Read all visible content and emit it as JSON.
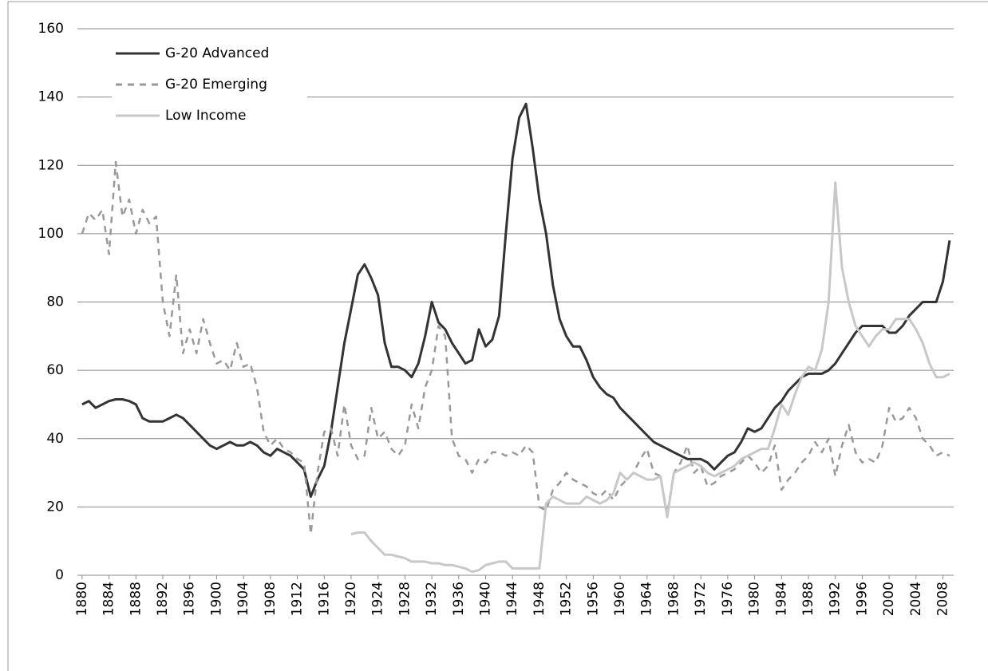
{
  "chart_data": {
    "type": "line",
    "x": [
      1880,
      1881,
      1882,
      1883,
      1884,
      1885,
      1886,
      1887,
      1888,
      1889,
      1890,
      1891,
      1892,
      1893,
      1894,
      1895,
      1896,
      1897,
      1898,
      1899,
      1900,
      1901,
      1902,
      1903,
      1904,
      1905,
      1906,
      1907,
      1908,
      1909,
      1910,
      1911,
      1912,
      1913,
      1914,
      1915,
      1916,
      1917,
      1918,
      1919,
      1920,
      1921,
      1922,
      1923,
      1924,
      1925,
      1926,
      1927,
      1928,
      1929,
      1930,
      1931,
      1932,
      1933,
      1934,
      1935,
      1936,
      1937,
      1938,
      1939,
      1940,
      1941,
      1942,
      1943,
      1944,
      1945,
      1946,
      1947,
      1948,
      1949,
      1950,
      1951,
      1952,
      1953,
      1954,
      1955,
      1956,
      1957,
      1958,
      1959,
      1960,
      1961,
      1962,
      1963,
      1964,
      1965,
      1966,
      1967,
      1968,
      1969,
      1970,
      1971,
      1972,
      1973,
      1974,
      1975,
      1976,
      1977,
      1978,
      1979,
      1980,
      1981,
      1982,
      1983,
      1984,
      1985,
      1986,
      1987,
      1988,
      1989,
      1990,
      1991,
      1992,
      1993,
      1994,
      1995,
      1996,
      1997,
      1998,
      1999,
      2000,
      2001,
      2002,
      2003,
      2004,
      2005,
      2006,
      2007,
      2008,
      2009
    ],
    "series": [
      {
        "name": "G-20 Advanced",
        "color": "#333333",
        "line_style": "solid",
        "values": [
          50,
          51,
          49,
          50,
          51,
          51.5,
          51.5,
          51,
          50,
          46,
          45,
          45,
          45,
          46,
          47,
          46,
          44,
          42,
          40,
          38,
          37,
          38,
          39,
          38,
          38,
          39,
          38,
          36,
          35,
          37,
          36,
          35,
          33,
          31,
          23,
          28,
          32,
          42,
          55,
          68,
          78,
          88,
          91,
          87,
          82,
          68,
          61,
          61,
          60,
          58,
          62,
          70,
          80,
          74,
          72,
          68,
          65,
          62,
          63,
          72,
          67,
          69,
          76,
          100,
          122,
          134,
          138,
          125,
          110,
          100,
          85,
          75,
          70,
          67,
          67,
          63,
          58,
          55,
          53,
          52,
          49,
          47,
          45,
          43,
          41,
          39,
          38,
          37,
          36,
          35,
          34,
          34,
          34,
          33,
          31,
          33,
          35,
          36,
          39,
          43,
          42,
          43,
          46,
          49,
          51,
          54,
          56,
          58,
          59,
          59,
          59,
          60,
          62,
          65,
          68,
          71,
          73,
          73,
          73,
          73,
          71,
          71,
          73,
          76,
          78,
          80,
          80,
          80,
          86,
          98
        ]
      },
      {
        "name": "G-20 Emerging",
        "color": "#999999",
        "line_style": "dashed",
        "values": [
          100,
          106,
          104,
          107,
          94,
          121,
          105,
          110,
          100,
          107,
          103,
          105,
          80,
          70,
          88,
          65,
          72,
          65,
          75,
          68,
          62,
          63,
          60,
          68,
          61,
          62,
          55,
          42,
          38,
          40,
          37,
          36,
          34,
          33,
          12,
          30,
          42,
          43,
          35,
          50,
          38,
          34,
          35,
          49,
          40,
          42,
          37,
          35,
          38,
          50,
          43,
          55,
          60,
          73,
          70,
          40,
          35,
          34,
          30,
          34,
          33,
          36,
          36,
          35,
          36,
          35,
          38,
          36,
          20,
          19,
          25,
          27,
          30,
          28,
          27,
          26,
          24,
          23,
          25,
          22,
          26,
          28,
          30,
          34,
          37,
          30,
          29,
          18,
          30,
          33,
          38,
          30,
          32,
          26,
          27,
          29,
          30,
          31,
          33,
          35,
          33,
          30,
          32,
          38,
          25,
          28,
          30,
          33,
          35,
          39,
          36,
          40,
          29,
          38,
          44,
          36,
          33,
          34,
          33,
          38,
          49,
          45,
          46,
          49,
          46,
          40,
          38,
          35,
          36,
          35
        ]
      },
      {
        "name": "Low Income",
        "color": "#c8c8c8",
        "line_style": "solid",
        "values": [
          null,
          null,
          null,
          null,
          null,
          null,
          null,
          null,
          null,
          null,
          null,
          null,
          null,
          null,
          null,
          null,
          null,
          null,
          null,
          null,
          null,
          null,
          null,
          null,
          null,
          null,
          null,
          null,
          null,
          null,
          null,
          null,
          null,
          null,
          null,
          null,
          null,
          null,
          null,
          null,
          12,
          12.5,
          12.5,
          10,
          8,
          6,
          6,
          5.5,
          5,
          4,
          4,
          4,
          3.5,
          3.5,
          3,
          3,
          2.5,
          2,
          1,
          1.5,
          3,
          3.5,
          4,
          4,
          2,
          2,
          2,
          2,
          2,
          21,
          23,
          22,
          21,
          21,
          21,
          23,
          22,
          21,
          22,
          24,
          30,
          28,
          30,
          29,
          28,
          28,
          29,
          17,
          30,
          31,
          32,
          33,
          32,
          30,
          29,
          30,
          31,
          32,
          34,
          35,
          36,
          37,
          37,
          43,
          50,
          47,
          53,
          58,
          61,
          60,
          66,
          80,
          115,
          90,
          80,
          73,
          70,
          67,
          70,
          72,
          72,
          75,
          75,
          75,
          72,
          68,
          62,
          58,
          58,
          59
        ]
      }
    ],
    "xlim": [
      1879.3,
      2009.6
    ],
    "xticks": [
      1880,
      1884,
      1888,
      1892,
      1896,
      1900,
      1904,
      1908,
      1912,
      1916,
      1920,
      1924,
      1928,
      1932,
      1936,
      1940,
      1944,
      1948,
      1952,
      1956,
      1960,
      1964,
      1968,
      1972,
      1976,
      1980,
      1984,
      1988,
      1992,
      1996,
      2000,
      2004,
      2008
    ],
    "ylim": [
      0,
      160
    ],
    "yticks": [
      0,
      20,
      40,
      60,
      80,
      100,
      120,
      140,
      160
    ],
    "grid": true,
    "legend": "upper left"
  }
}
